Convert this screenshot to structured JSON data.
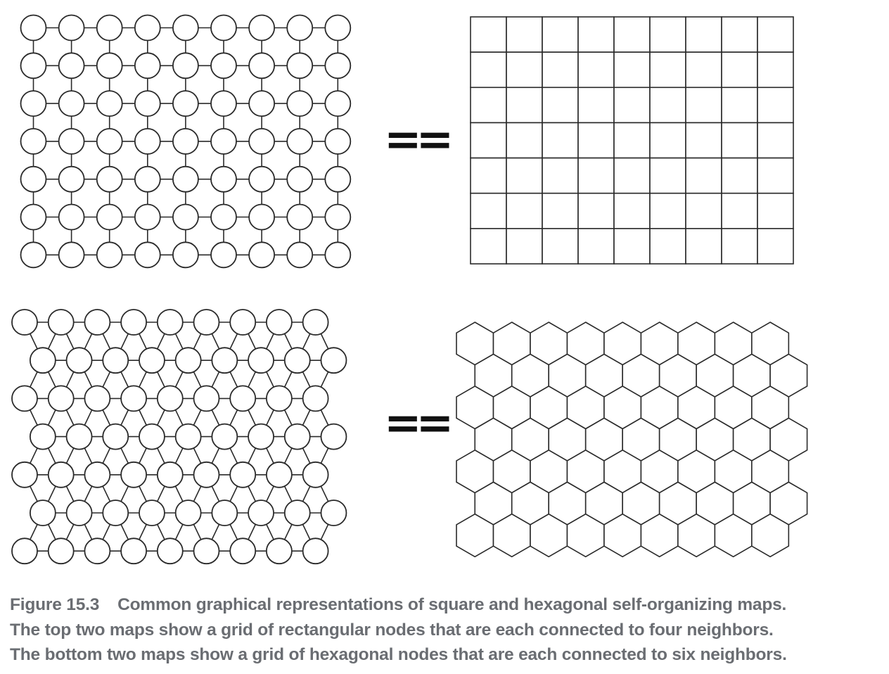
{
  "equals": {
    "top": "==",
    "bottom": "=="
  },
  "caption": {
    "figure_label": "Figure 15.3",
    "title": "Common graphical representations of square and hexagonal self-organizing maps.",
    "line2": "The top two maps show a grid of rectangular nodes that are each connected to four neighbors.",
    "line3": "The bottom two maps show a grid of hexagonal nodes that are each connected to six neighbors."
  },
  "grids": {
    "square_node_map": {
      "rows": 7,
      "cols": 9
    },
    "square_cell_map": {
      "rows": 7,
      "cols": 9
    },
    "hex_node_map": {
      "rows": 7,
      "cols": 9
    },
    "hex_cell_map": {
      "rows": 7,
      "cols": 9
    }
  },
  "colors": {
    "stroke": "#2a2a2a",
    "caption": "#6a6d72"
  }
}
